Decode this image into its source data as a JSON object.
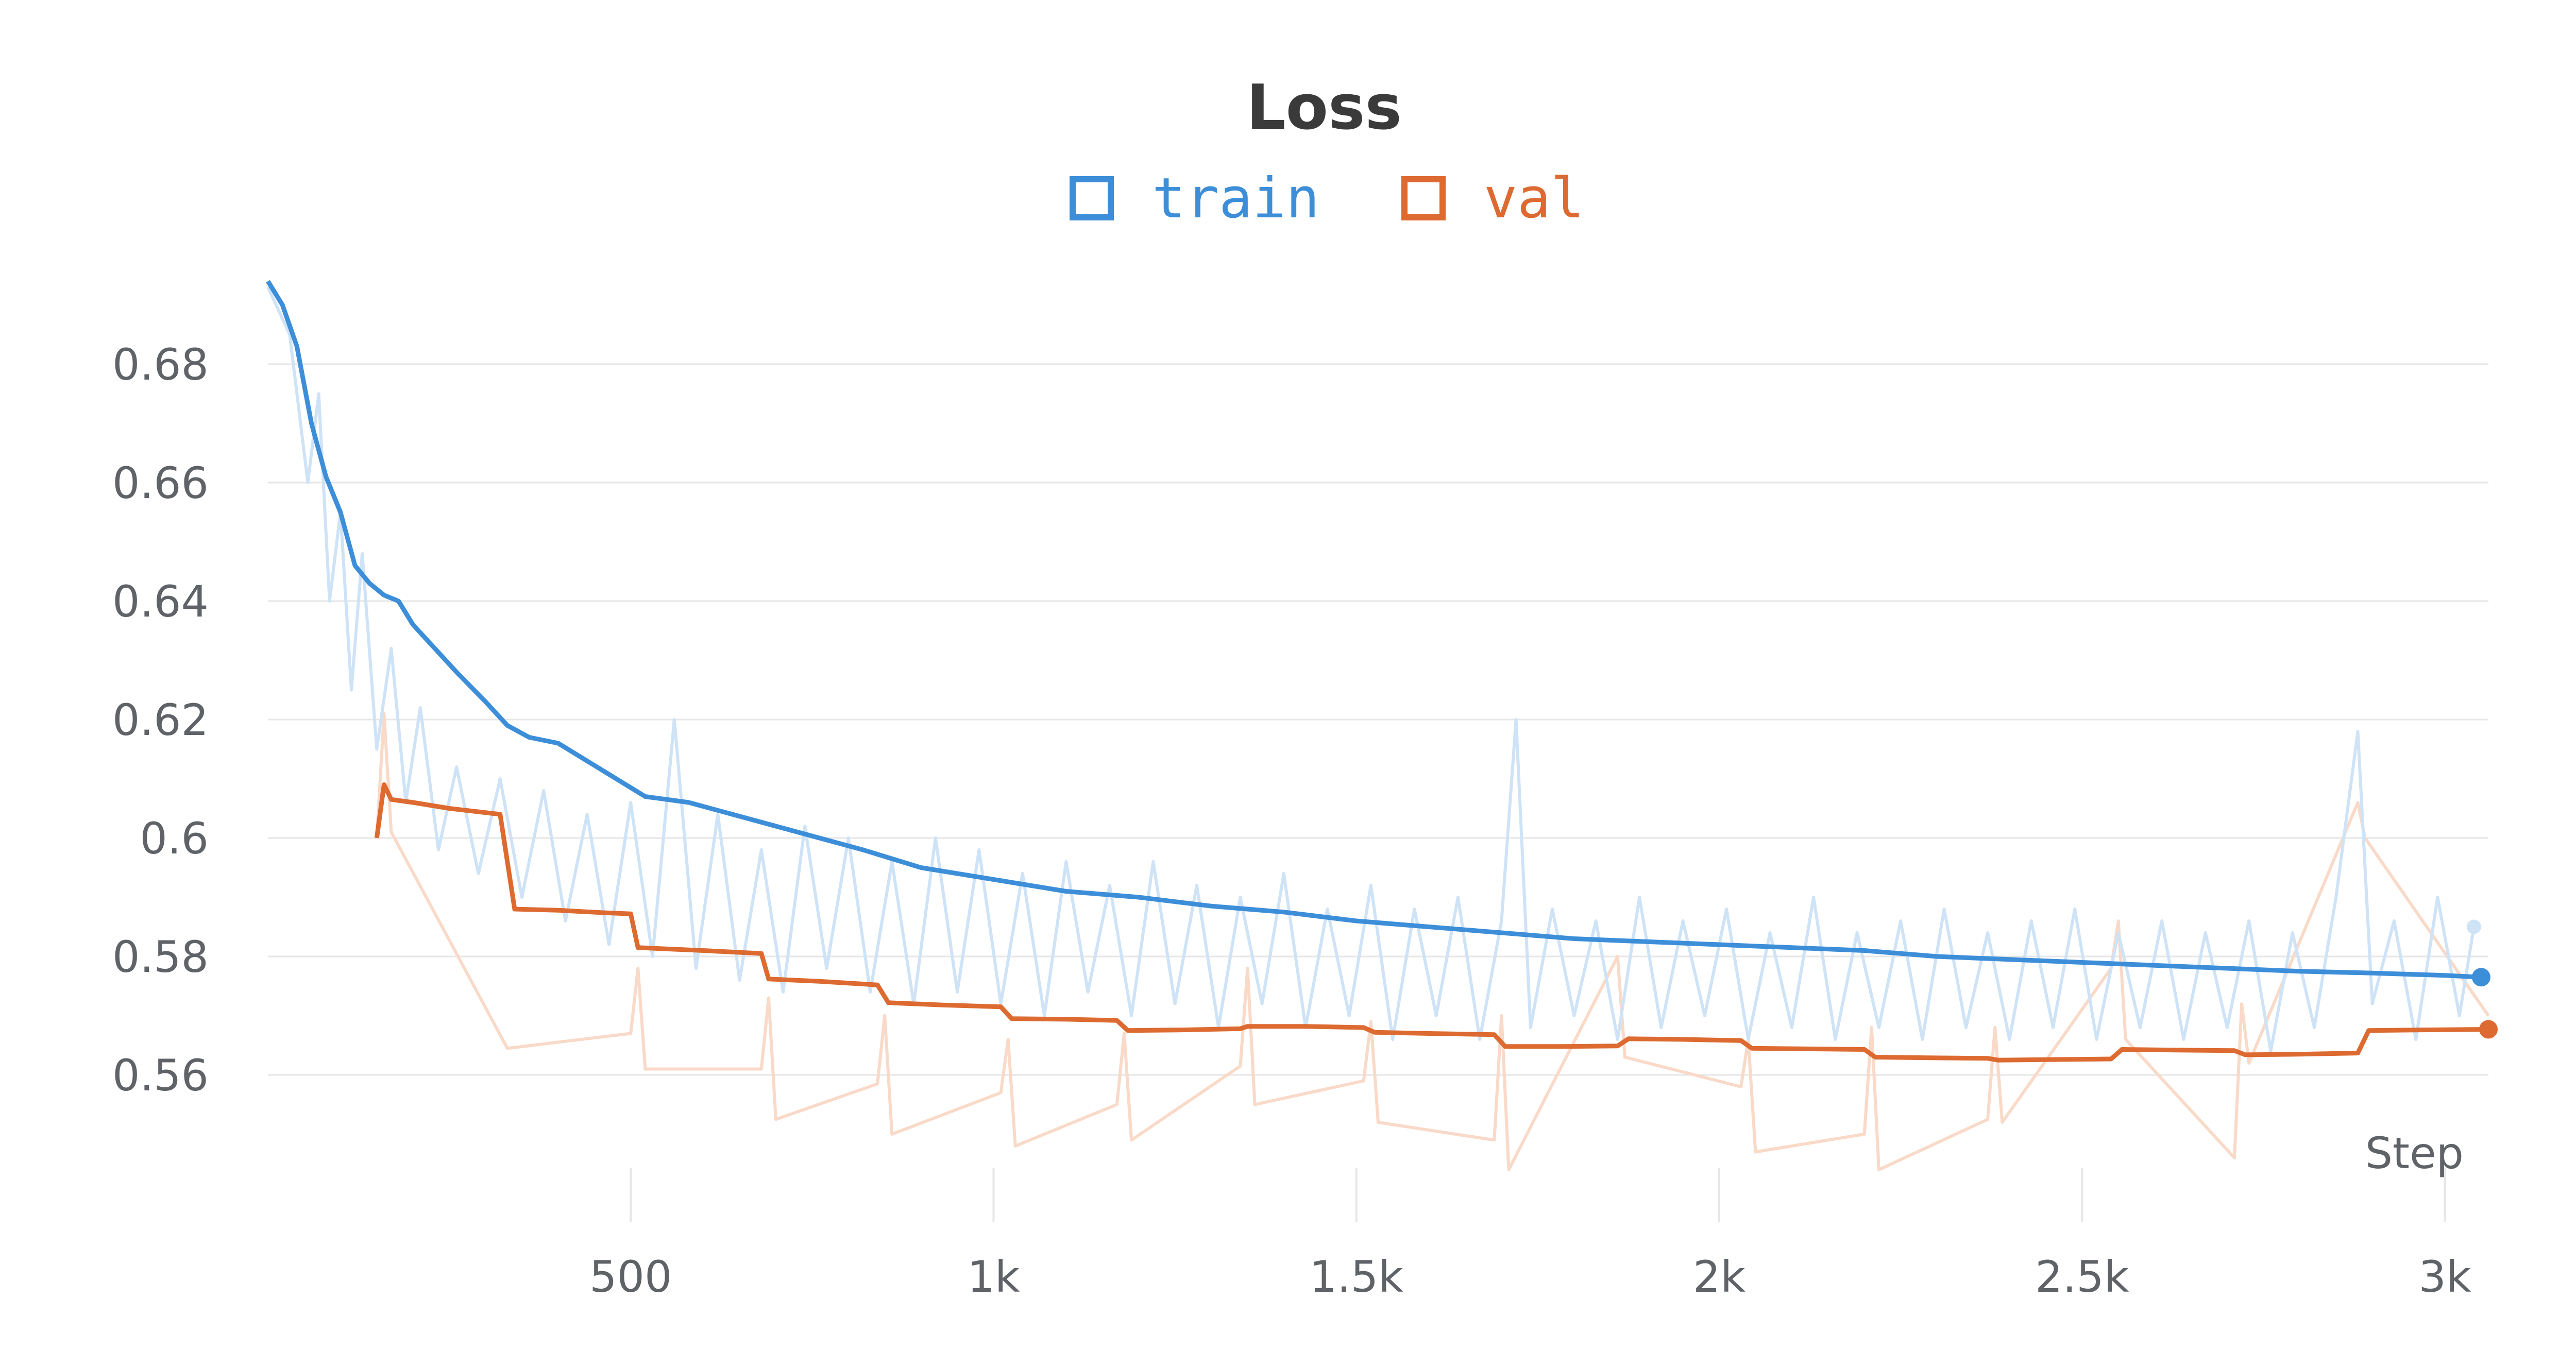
{
  "colors": {
    "train": "#3d8ed8",
    "train_raw": "#cfe3f7",
    "val": "#dd6a30",
    "val_raw": "#f9d9c8",
    "grid": "#e6e6e6",
    "text": "#5f6368",
    "title": "#3a3a3a"
  },
  "chart_data": {
    "type": "line",
    "title": "Loss",
    "xlabel": "Step",
    "ylabel": "",
    "grid": true,
    "legend_position": "top-center",
    "x_ticks": [
      {
        "value": 500,
        "label": "500"
      },
      {
        "value": 1000,
        "label": "1k"
      },
      {
        "value": 1500,
        "label": "1.5k"
      },
      {
        "value": 2000,
        "label": "2k"
      },
      {
        "value": 2500,
        "label": "2.5k"
      },
      {
        "value": 3000,
        "label": "3k"
      }
    ],
    "y_ticks": [
      {
        "value": 0.56,
        "label": "0.56"
      },
      {
        "value": 0.58,
        "label": "0.58"
      },
      {
        "value": 0.6,
        "label": "0.6"
      },
      {
        "value": 0.62,
        "label": "0.62"
      },
      {
        "value": 0.64,
        "label": "0.64"
      },
      {
        "value": 0.66,
        "label": "0.66"
      },
      {
        "value": 0.68,
        "label": "0.68"
      }
    ],
    "xlim": [
      0,
      3060
    ],
    "ylim": [
      0.538,
      0.698
    ],
    "series": [
      {
        "name": "train",
        "smoothed": [
          [
            0,
            0.694
          ],
          [
            20,
            0.69
          ],
          [
            40,
            0.683
          ],
          [
            60,
            0.67
          ],
          [
            80,
            0.661
          ],
          [
            100,
            0.655
          ],
          [
            120,
            0.646
          ],
          [
            140,
            0.643
          ],
          [
            160,
            0.641
          ],
          [
            180,
            0.64
          ],
          [
            200,
            0.636
          ],
          [
            230,
            0.632
          ],
          [
            260,
            0.628
          ],
          [
            300,
            0.623
          ],
          [
            330,
            0.619
          ],
          [
            360,
            0.617
          ],
          [
            400,
            0.616
          ],
          [
            440,
            0.613
          ],
          [
            480,
            0.61
          ],
          [
            520,
            0.607
          ],
          [
            580,
            0.606
          ],
          [
            640,
            0.604
          ],
          [
            700,
            0.602
          ],
          [
            760,
            0.6
          ],
          [
            820,
            0.598
          ],
          [
            900,
            0.595
          ],
          [
            1000,
            0.593
          ],
          [
            1100,
            0.591
          ],
          [
            1200,
            0.59
          ],
          [
            1300,
            0.5885
          ],
          [
            1400,
            0.5875
          ],
          [
            1500,
            0.586
          ],
          [
            1600,
            0.585
          ],
          [
            1700,
            0.584
          ],
          [
            1800,
            0.583
          ],
          [
            1900,
            0.5825
          ],
          [
            2000,
            0.582
          ],
          [
            2100,
            0.5815
          ],
          [
            2200,
            0.581
          ],
          [
            2300,
            0.58
          ],
          [
            2400,
            0.5795
          ],
          [
            2500,
            0.579
          ],
          [
            2600,
            0.5785
          ],
          [
            2700,
            0.578
          ],
          [
            2800,
            0.5775
          ],
          [
            2900,
            0.5772
          ],
          [
            3000,
            0.5768
          ],
          [
            3050,
            0.5765
          ]
        ],
        "raw": [
          [
            0,
            0.693
          ],
          [
            30,
            0.685
          ],
          [
            55,
            0.66
          ],
          [
            70,
            0.675
          ],
          [
            85,
            0.64
          ],
          [
            100,
            0.655
          ],
          [
            115,
            0.625
          ],
          [
            130,
            0.648
          ],
          [
            150,
            0.615
          ],
          [
            170,
            0.632
          ],
          [
            190,
            0.606
          ],
          [
            210,
            0.622
          ],
          [
            235,
            0.598
          ],
          [
            260,
            0.612
          ],
          [
            290,
            0.594
          ],
          [
            320,
            0.61
          ],
          [
            350,
            0.59
          ],
          [
            380,
            0.608
          ],
          [
            410,
            0.586
          ],
          [
            440,
            0.604
          ],
          [
            470,
            0.582
          ],
          [
            500,
            0.606
          ],
          [
            530,
            0.58
          ],
          [
            560,
            0.62
          ],
          [
            590,
            0.578
          ],
          [
            620,
            0.604
          ],
          [
            650,
            0.576
          ],
          [
            680,
            0.598
          ],
          [
            710,
            0.574
          ],
          [
            740,
            0.602
          ],
          [
            770,
            0.578
          ],
          [
            800,
            0.6
          ],
          [
            830,
            0.574
          ],
          [
            860,
            0.596
          ],
          [
            890,
            0.572
          ],
          [
            920,
            0.6
          ],
          [
            950,
            0.574
          ],
          [
            980,
            0.598
          ],
          [
            1010,
            0.572
          ],
          [
            1040,
            0.594
          ],
          [
            1070,
            0.57
          ],
          [
            1100,
            0.596
          ],
          [
            1130,
            0.574
          ],
          [
            1160,
            0.592
          ],
          [
            1190,
            0.57
          ],
          [
            1220,
            0.596
          ],
          [
            1250,
            0.572
          ],
          [
            1280,
            0.592
          ],
          [
            1310,
            0.568
          ],
          [
            1340,
            0.59
          ],
          [
            1370,
            0.572
          ],
          [
            1400,
            0.594
          ],
          [
            1430,
            0.568
          ],
          [
            1460,
            0.588
          ],
          [
            1490,
            0.57
          ],
          [
            1520,
            0.592
          ],
          [
            1550,
            0.566
          ],
          [
            1580,
            0.588
          ],
          [
            1610,
            0.57
          ],
          [
            1640,
            0.59
          ],
          [
            1670,
            0.566
          ],
          [
            1700,
            0.586
          ],
          [
            1720,
            0.62
          ],
          [
            1740,
            0.568
          ],
          [
            1770,
            0.588
          ],
          [
            1800,
            0.57
          ],
          [
            1830,
            0.586
          ],
          [
            1860,
            0.566
          ],
          [
            1890,
            0.59
          ],
          [
            1920,
            0.568
          ],
          [
            1950,
            0.586
          ],
          [
            1980,
            0.57
          ],
          [
            2010,
            0.588
          ],
          [
            2040,
            0.566
          ],
          [
            2070,
            0.584
          ],
          [
            2100,
            0.568
          ],
          [
            2130,
            0.59
          ],
          [
            2160,
            0.566
          ],
          [
            2190,
            0.584
          ],
          [
            2220,
            0.568
          ],
          [
            2250,
            0.586
          ],
          [
            2280,
            0.566
          ],
          [
            2310,
            0.588
          ],
          [
            2340,
            0.568
          ],
          [
            2370,
            0.584
          ],
          [
            2400,
            0.566
          ],
          [
            2430,
            0.586
          ],
          [
            2460,
            0.568
          ],
          [
            2490,
            0.588
          ],
          [
            2520,
            0.566
          ],
          [
            2550,
            0.584
          ],
          [
            2580,
            0.568
          ],
          [
            2610,
            0.586
          ],
          [
            2640,
            0.566
          ],
          [
            2670,
            0.584
          ],
          [
            2700,
            0.568
          ],
          [
            2730,
            0.586
          ],
          [
            2760,
            0.564
          ],
          [
            2790,
            0.584
          ],
          [
            2820,
            0.568
          ],
          [
            2850,
            0.59
          ],
          [
            2880,
            0.618
          ],
          [
            2900,
            0.572
          ],
          [
            2930,
            0.586
          ],
          [
            2960,
            0.566
          ],
          [
            2990,
            0.59
          ],
          [
            3020,
            0.57
          ],
          [
            3040,
            0.585
          ]
        ]
      },
      {
        "name": "val",
        "smoothed": [
          [
            150,
            0.6
          ],
          [
            160,
            0.609
          ],
          [
            170,
            0.6065
          ],
          [
            200,
            0.606
          ],
          [
            250,
            0.605
          ],
          [
            320,
            0.604
          ],
          [
            330,
            0.596
          ],
          [
            340,
            0.588
          ],
          [
            400,
            0.5878
          ],
          [
            460,
            0.5874
          ],
          [
            500,
            0.5872
          ],
          [
            510,
            0.5815
          ],
          [
            600,
            0.581
          ],
          [
            680,
            0.5805
          ],
          [
            690,
            0.5762
          ],
          [
            760,
            0.5758
          ],
          [
            840,
            0.5752
          ],
          [
            855,
            0.5722
          ],
          [
            930,
            0.5718
          ],
          [
            1010,
            0.5715
          ],
          [
            1025,
            0.5695
          ],
          [
            1100,
            0.5694
          ],
          [
            1170,
            0.5692
          ],
          [
            1185,
            0.5675
          ],
          [
            1260,
            0.5676
          ],
          [
            1340,
            0.5678
          ],
          [
            1350,
            0.5682
          ],
          [
            1430,
            0.5682
          ],
          [
            1510,
            0.568
          ],
          [
            1525,
            0.5672
          ],
          [
            1600,
            0.567
          ],
          [
            1690,
            0.5668
          ],
          [
            1705,
            0.5648
          ],
          [
            1780,
            0.5648
          ],
          [
            1860,
            0.5649
          ],
          [
            1875,
            0.5661
          ],
          [
            1950,
            0.566
          ],
          [
            2030,
            0.5658
          ],
          [
            2045,
            0.5645
          ],
          [
            2120,
            0.5644
          ],
          [
            2200,
            0.5643
          ],
          [
            2215,
            0.563
          ],
          [
            2290,
            0.5629
          ],
          [
            2370,
            0.5628
          ],
          [
            2385,
            0.5625
          ],
          [
            2460,
            0.5626
          ],
          [
            2540,
            0.5627
          ],
          [
            2555,
            0.5643
          ],
          [
            2630,
            0.5642
          ],
          [
            2710,
            0.5641
          ],
          [
            2725,
            0.5634
          ],
          [
            2800,
            0.5635
          ],
          [
            2880,
            0.5637
          ],
          [
            2895,
            0.5675
          ],
          [
            2970,
            0.5676
          ],
          [
            3060,
            0.5677
          ]
        ],
        "raw": [
          [
            150,
            0.6
          ],
          [
            160,
            0.621
          ],
          [
            170,
            0.601
          ],
          [
            330,
            0.5645
          ],
          [
            500,
            0.567
          ],
          [
            510,
            0.578
          ],
          [
            520,
            0.561
          ],
          [
            680,
            0.561
          ],
          [
            690,
            0.573
          ],
          [
            700,
            0.5525
          ],
          [
            840,
            0.5585
          ],
          [
            850,
            0.57
          ],
          [
            860,
            0.55
          ],
          [
            1010,
            0.557
          ],
          [
            1020,
            0.566
          ],
          [
            1030,
            0.548
          ],
          [
            1170,
            0.555
          ],
          [
            1180,
            0.567
          ],
          [
            1190,
            0.549
          ],
          [
            1340,
            0.5615
          ],
          [
            1350,
            0.578
          ],
          [
            1360,
            0.555
          ],
          [
            1510,
            0.559
          ],
          [
            1520,
            0.569
          ],
          [
            1530,
            0.552
          ],
          [
            1690,
            0.549
          ],
          [
            1700,
            0.57
          ],
          [
            1710,
            0.544
          ],
          [
            1860,
            0.58
          ],
          [
            1870,
            0.563
          ],
          [
            2030,
            0.558
          ],
          [
            2040,
            0.566
          ],
          [
            2050,
            0.547
          ],
          [
            2200,
            0.55
          ],
          [
            2210,
            0.568
          ],
          [
            2220,
            0.544
          ],
          [
            2370,
            0.5525
          ],
          [
            2380,
            0.568
          ],
          [
            2390,
            0.552
          ],
          [
            2540,
            0.578
          ],
          [
            2550,
            0.586
          ],
          [
            2560,
            0.566
          ],
          [
            2710,
            0.546
          ],
          [
            2720,
            0.572
          ],
          [
            2730,
            0.562
          ],
          [
            2880,
            0.606
          ],
          [
            2890,
            0.6
          ],
          [
            3060,
            0.57
          ]
        ]
      }
    ]
  }
}
